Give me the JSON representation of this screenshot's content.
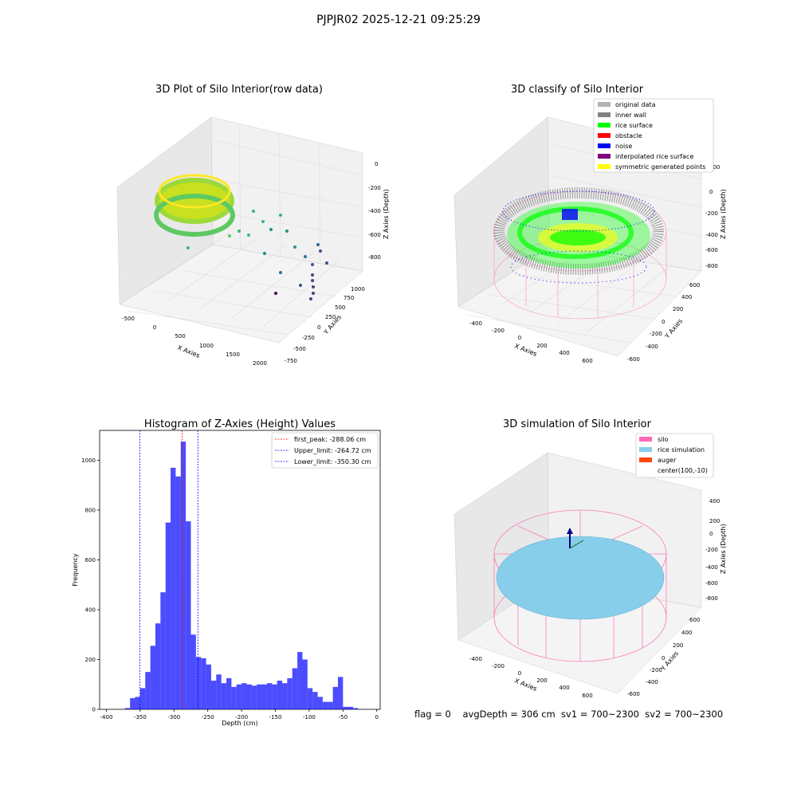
{
  "figure": {
    "suptitle": "PJPJR02 2025-12-21 09:25:29",
    "footer": "flag = 0    avgDepth = 306 cm  sv1 = 700~2300  sv2 = 700~2300"
  },
  "chart_data": [
    {
      "type": "scatter3d",
      "title": "3D Plot of Silo Interior(row data)",
      "xlabel": "X Axies",
      "ylabel": "Y Axies",
      "zlabel": "Z Axies (Depth)",
      "xticks": [
        "-500",
        "0",
        "500",
        "1000",
        "1500",
        "2000"
      ],
      "yticks": [
        "-750",
        "-500",
        "-250",
        "0",
        "250",
        "500",
        "750",
        "1000"
      ],
      "zticks": [
        "0",
        "-200",
        "-400",
        "-600",
        "-800"
      ],
      "colormap": "viridis",
      "grid": true
    },
    {
      "type": "scatter3d",
      "title": "3D classify of Silo Interior",
      "xlabel": "X Axies",
      "ylabel": "Y Axies",
      "zlabel": "Z Axies (Depth)",
      "xticks": [
        "-400",
        "-200",
        "0",
        "200",
        "400",
        "600"
      ],
      "yticks": [
        "-600",
        "-400",
        "-200",
        "0",
        "200",
        "400",
        "600"
      ],
      "zticks": [
        "200",
        "0",
        "-200",
        "-400",
        "-600",
        "-800"
      ],
      "legend_position": "top-right",
      "legend": [
        {
          "label": "original data",
          "color": "#b3b3b3"
        },
        {
          "label": "inner wall",
          "color": "#808080"
        },
        {
          "label": "rice surface",
          "color": "#00ff00"
        },
        {
          "label": "obstacle",
          "color": "#ff0000"
        },
        {
          "label": "noise",
          "color": "#0000ff"
        },
        {
          "label": "interpolated rice surface",
          "color": "#800080"
        },
        {
          "label": "symmetric generated points",
          "color": "#ffff00"
        }
      ],
      "grid": true
    },
    {
      "type": "bar",
      "title": "Histogram of Z-Axies (Height) Values",
      "xlabel": "Depth (cm)",
      "ylabel": "Frequency",
      "xlim": [
        -410,
        5
      ],
      "ylim": [
        0,
        1120
      ],
      "xticks": [
        -400,
        -350,
        -300,
        -250,
        -200,
        -150,
        -100,
        -50,
        0
      ],
      "yticks": [
        0,
        200,
        400,
        600,
        800,
        1000
      ],
      "bar_color": "#0000ff",
      "bin_start": -372.5,
      "bin_width": 7.5,
      "values": [
        5,
        45,
        50,
        85,
        150,
        255,
        345,
        470,
        750,
        970,
        935,
        1075,
        755,
        300,
        210,
        205,
        180,
        115,
        140,
        105,
        125,
        90,
        100,
        105,
        100,
        95,
        100,
        100,
        105,
        100,
        115,
        105,
        125,
        165,
        230,
        200,
        85,
        70,
        50,
        30,
        30,
        90,
        130,
        10,
        10,
        5
      ],
      "vlines": [
        {
          "label": "first_peak: -288.06 cm",
          "x": -288.06,
          "color": "#ff0000"
        },
        {
          "label": "Upper_limit: -264.72 cm",
          "x": -264.72,
          "color": "#0000ff"
        },
        {
          "label": "Lower_limit: -350.30 cm",
          "x": -350.3,
          "color": "#0000ff"
        }
      ],
      "legend_position": "top-right",
      "grid": false
    },
    {
      "type": "surface3d",
      "title": "3D simulation of Silo Interior",
      "xlabel": "X Axies",
      "ylabel": "Y Axies",
      "zlabel": "Z Axies (Depth)",
      "xticks": [
        "-400",
        "-200",
        "0",
        "200",
        "400",
        "600"
      ],
      "yticks": [
        "-600",
        "-400",
        "-200",
        "0",
        "200",
        "400",
        "600"
      ],
      "zticks": [
        "400",
        "200",
        "0",
        "-200",
        "-400",
        "-600",
        "-800"
      ],
      "legend_position": "top-right",
      "legend": [
        {
          "label": "silo",
          "color": "#ff69b4"
        },
        {
          "label": "rice simulation",
          "color": "#87ceeb"
        },
        {
          "label": "auger",
          "color": "#ff4500"
        },
        {
          "label": "center(100,-10)",
          "color": null
        }
      ],
      "grid": true
    }
  ]
}
